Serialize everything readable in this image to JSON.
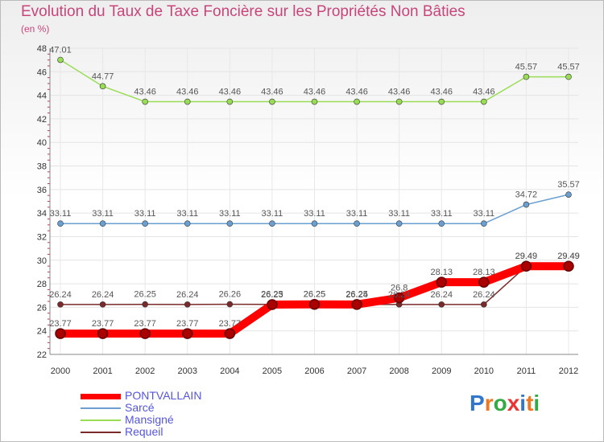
{
  "chart_data": {
    "type": "line",
    "title": "Evolution du Taux de Taxe Foncière sur les Propriétés Non Bâties",
    "ylabel": "(en %)",
    "xlabel": "",
    "ylim": [
      22,
      48
    ],
    "y_ticks": [
      "22",
      "24",
      "26",
      "28",
      "30",
      "32",
      "34",
      "36",
      "38",
      "40",
      "42",
      "44",
      "46",
      "48"
    ],
    "categories": [
      "2000",
      "2001",
      "2002",
      "2003",
      "2004",
      "2005",
      "2006",
      "2007",
      "2008",
      "2009",
      "2010",
      "2011",
      "2012"
    ],
    "series": [
      {
        "name": "PONTVALLAIN",
        "color": "#ff0000",
        "values": [
          23.77,
          23.77,
          23.77,
          23.77,
          23.77,
          26.23,
          26.25,
          26.24,
          26.8,
          28.13,
          28.13,
          29.49,
          29.49
        ],
        "labels": [
          "23.77",
          "23.77",
          "23.77",
          "23.77",
          "23.77",
          "26.23",
          "26.25",
          "26.24",
          "26.8",
          "28.13",
          "28.13",
          "29.49",
          "29.49"
        ]
      },
      {
        "name": "Sarcé",
        "color": "#6a9fd0",
        "values": [
          33.11,
          33.11,
          33.11,
          33.11,
          33.11,
          33.11,
          33.11,
          33.11,
          33.11,
          33.11,
          33.11,
          34.72,
          35.57
        ],
        "labels": [
          "33.11",
          "33.11",
          "33.11",
          "33.11",
          "33.11",
          "33.11",
          "33.11",
          "33.11",
          "33.11",
          "33.11",
          "33.11",
          "34.72",
          "35.57"
        ]
      },
      {
        "name": "Mansigné",
        "color": "#99dd55",
        "values": [
          47.01,
          44.77,
          43.46,
          43.46,
          43.46,
          43.46,
          43.46,
          43.46,
          43.46,
          43.46,
          43.46,
          45.57,
          45.57
        ],
        "labels": [
          "47.01",
          "44.77",
          "43.46",
          "43.46",
          "43.46",
          "43.46",
          "43.46",
          "43.46",
          "43.46",
          "43.46",
          "43.46",
          "45.57",
          "45.57"
        ]
      },
      {
        "name": "Requeil",
        "color": "#7a2a2a",
        "values": [
          26.24,
          26.24,
          26.25,
          26.24,
          26.26,
          26.25,
          26.25,
          26.25,
          26.24,
          26.24,
          26.24,
          29.49,
          29.49
        ],
        "labels": [
          "26.24",
          "26.24",
          "26.25",
          "26.24",
          "26.26",
          "26.25",
          "26.25",
          "26.25",
          "26.24",
          "26.24",
          "26.24",
          "29.49",
          "29.49"
        ]
      }
    ]
  },
  "logo": {
    "text": "Proxiti"
  }
}
